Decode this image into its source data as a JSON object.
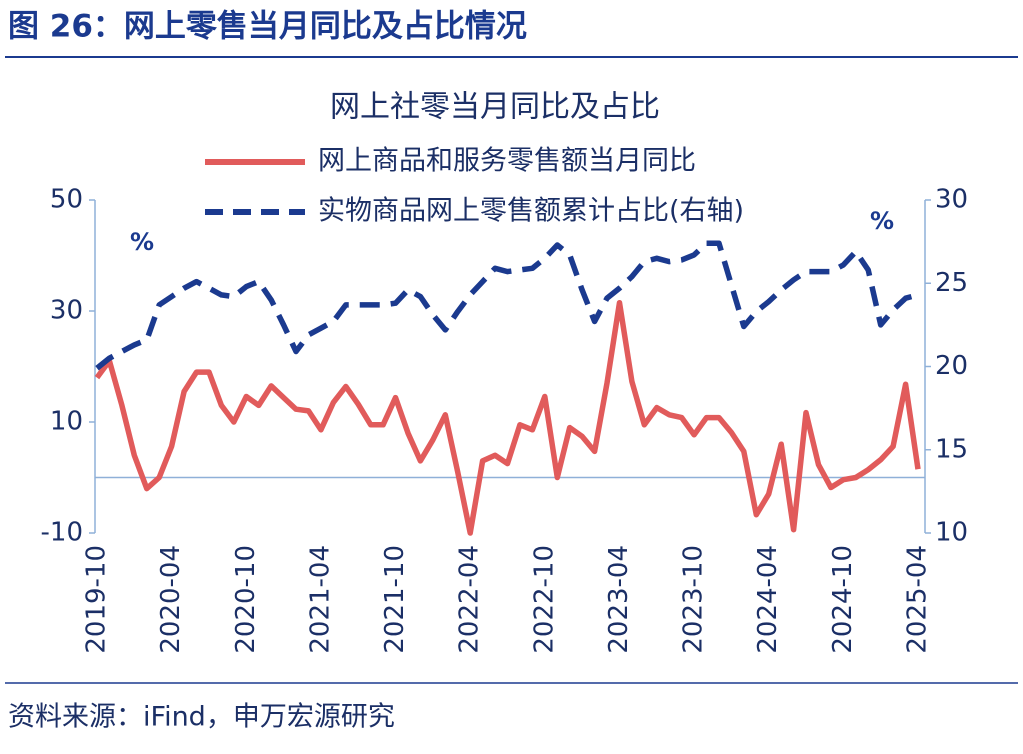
{
  "header": {
    "title": "图 26：网上零售当月同比及占比情况"
  },
  "chart_data": {
    "type": "line",
    "title": "网上社零当月同比及占比",
    "y_unit": "%",
    "y2_unit": "%",
    "categories": [
      "2019-10",
      null,
      null,
      null,
      null,
      null,
      "2020-04",
      null,
      null,
      null,
      null,
      null,
      "2020-10",
      null,
      null,
      null,
      null,
      null,
      "2021-04",
      null,
      null,
      null,
      null,
      null,
      "2021-10",
      null,
      null,
      null,
      null,
      null,
      "2022-04",
      null,
      null,
      null,
      null,
      null,
      "2022-10",
      null,
      null,
      null,
      null,
      null,
      "2023-04",
      null,
      null,
      null,
      null,
      null,
      "2023-10",
      null,
      null,
      null,
      null,
      null,
      "2024-04",
      null,
      null,
      null,
      null,
      null,
      "2024-10",
      null,
      null,
      null,
      null,
      null,
      "2025-04"
    ],
    "series": [
      {
        "name": "网上商品和服务零售额当月同比",
        "color": "#e15b5b",
        "style": "solid",
        "values": [
          18,
          21,
          13,
          4,
          -2,
          0,
          5.6,
          15.5,
          19,
          19,
          13,
          10,
          14.6,
          13,
          16.5,
          14.4,
          12.3,
          12,
          8.6,
          13.5,
          16.4,
          13.2,
          9.5,
          9.5,
          14.4,
          8,
          3,
          6.8,
          11.3,
          1,
          -10,
          3,
          4,
          2.5,
          9.5,
          8.6,
          14.6,
          0,
          9,
          7.4,
          4.7,
          17,
          31.5,
          17.3,
          9.5,
          12.6,
          11.3,
          10.8,
          7.7,
          10.8,
          10.8,
          8.1,
          4.7,
          -6.7,
          -3,
          6,
          -9.4,
          11.7,
          2.3,
          -1.8,
          -0.4,
          0,
          1.4,
          3.2,
          5.6,
          16.8,
          1.5
        ]
      },
      {
        "name": "实物商品网上零售额累计占比(右轴)",
        "color": "#1b3a8f",
        "style": "dashed",
        "axis": "y2",
        "values": [
          19.9,
          20.5,
          20.9,
          21.3,
          21.6,
          23.7,
          24.2,
          24.7,
          25.1,
          24.7,
          24.3,
          24.2,
          24.8,
          25.1,
          24,
          22.5,
          20.9,
          21.9,
          22.3,
          22.7,
          23.7,
          23.7,
          23.7,
          23.7,
          23.8,
          24.6,
          24.2,
          23.1,
          22.2,
          23.3,
          24.3,
          25.1,
          25.9,
          25.7,
          25.8,
          25.9,
          26.5,
          27.3,
          26.7,
          24.6,
          22.7,
          24.1,
          24.7,
          25.4,
          26.3,
          26.5,
          26.3,
          26.4,
          26.7,
          27.4,
          27.4,
          24.9,
          22.4,
          23.3,
          23.9,
          24.6,
          25.2,
          25.7,
          25.7,
          25.7,
          26.1,
          26.9,
          25.8,
          22.5,
          23.4,
          24.1,
          24.3
        ]
      }
    ],
    "ylim": [
      -10,
      50
    ],
    "yticks": [
      -10,
      10,
      30,
      50
    ],
    "y2lim": [
      10,
      30
    ],
    "y2ticks": [
      10,
      15,
      20,
      25,
      30
    ],
    "legend": "top"
  },
  "footer": {
    "source": "资料来源：iFind，申万宏源研究"
  }
}
